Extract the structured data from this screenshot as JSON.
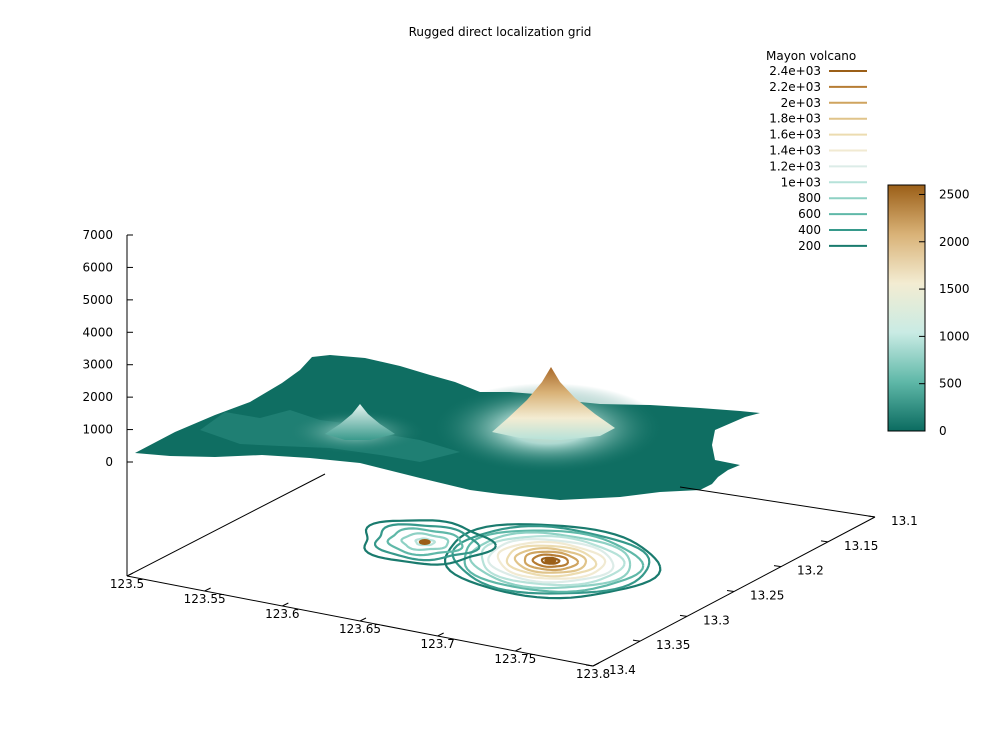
{
  "chart_data": {
    "type": "surface-contour",
    "title": "Rugged direct localization grid",
    "x": {
      "label": "",
      "ticks": [
        123.5,
        123.55,
        123.6,
        123.65,
        123.7,
        123.75,
        123.8
      ],
      "range": [
        123.5,
        123.8
      ]
    },
    "y": {
      "label": "",
      "ticks": [
        13.1,
        13.15,
        13.2,
        13.25,
        13.3,
        13.35,
        13.4
      ],
      "range": [
        13.1,
        13.4
      ]
    },
    "z": {
      "label": "",
      "ticks": [
        0,
        1000,
        2000,
        3000,
        4000,
        5000,
        6000,
        7000
      ],
      "range": [
        0,
        7000
      ]
    },
    "legend": {
      "title": "Mayon volcano",
      "placement": "top-right",
      "entries": [
        {
          "label": "2.4e+03",
          "level": 2400,
          "color": "#9b5f18"
        },
        {
          "label": "2.2e+03",
          "level": 2200,
          "color": "#b67d34"
        },
        {
          "label": "2e+03",
          "level": 2000,
          "color": "#cfa45f"
        },
        {
          "label": "1.8e+03",
          "level": 1800,
          "color": "#e0c48a"
        },
        {
          "label": "1.6e+03",
          "level": 1600,
          "color": "#ecdcb0"
        },
        {
          "label": "1.4e+03",
          "level": 1400,
          "color": "#f1ead2"
        },
        {
          "label": "1.2e+03",
          "level": 1200,
          "color": "#dcece8"
        },
        {
          "label": "1e+03",
          "level": 1000,
          "color": "#b6e2d9"
        },
        {
          "label": "800",
          "level": 800,
          "color": "#8ed1c4"
        },
        {
          "label": "600",
          "level": 600,
          "color": "#5fb8a8"
        },
        {
          "label": "400",
          "level": 400,
          "color": "#36998b"
        },
        {
          "label": "200",
          "level": 200,
          "color": "#1a7b6e"
        }
      ]
    },
    "colorbar": {
      "ticks": [
        0,
        500,
        1000,
        1500,
        2000,
        2500
      ],
      "range": [
        0,
        2600
      ],
      "colors": [
        "#0b6b60",
        "#5fb8a8",
        "#c9ebe4",
        "#f3ecd2",
        "#d9b277",
        "#9b5f18"
      ]
    },
    "peaks": [
      {
        "name": "",
        "x": 123.686,
        "y": 13.257,
        "z": 2460
      },
      {
        "name": "",
        "x": 123.61,
        "y": 13.265,
        "z": 1050
      }
    ],
    "grid": false
  }
}
